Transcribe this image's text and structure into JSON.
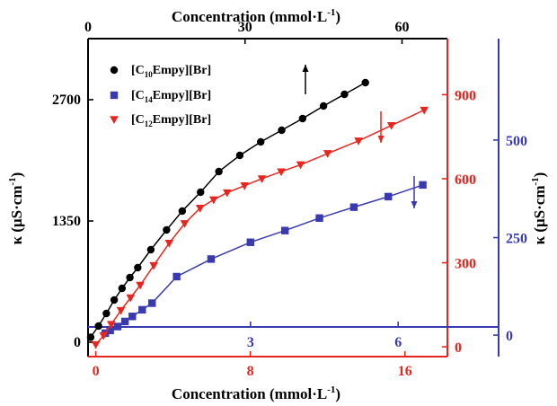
{
  "chart_data": {
    "type": "line",
    "axes": {
      "top_x": {
        "label": "Concentration (mmol·L",
        "label_sup": "-1",
        "label_tail": ")",
        "range": [
          0,
          68.67
        ],
        "ticks": [
          0,
          30,
          60
        ],
        "color": "#000000",
        "applies_to": "[C10Empy][Br]"
      },
      "bottom_x_red": {
        "label": "Concentration (mmol·L",
        "label_sup": "-1",
        "label_tail": ")",
        "range": [
          -0.4,
          18.2
        ],
        "ticks": [
          0,
          8,
          16
        ],
        "color": "#e8261f",
        "applies_to": "[C12Empy][Br]"
      },
      "bottom_x_blue": {
        "range": [
          -0.3,
          7.0
        ],
        "ticks": [
          3,
          6
        ],
        "color": "#3a3ab0",
        "applies_to": "[C14Empy][Br]"
      },
      "left_y": {
        "label": "κ (μS·cm",
        "label_sup": "-1",
        "label_tail": ")",
        "range": [
          -160,
          3380
        ],
        "ticks": [
          0,
          1350,
          2700
        ],
        "color": "#000000",
        "applies_to": "[C10Empy][Br]"
      },
      "right_y_red": {
        "range": [
          -35,
          1100
        ],
        "ticks": [
          0,
          300,
          600,
          900
        ],
        "color": "#e8261f",
        "applies_to": "[C12Empy][Br]"
      },
      "right_y_blue": {
        "label": "κ (μS·cm",
        "label_sup": "-1",
        "label_tail": ")",
        "range": [
          -55,
          760
        ],
        "ticks": [
          0,
          250,
          500
        ],
        "color": "#3a3ab0",
        "applies_to": "[C14Empy][Br]"
      }
    },
    "legend": {
      "placement": "top-left"
    },
    "series": [
      {
        "name": "[C10Empy][Br]",
        "name_base": "[C",
        "name_sub": "10",
        "name_tail": "Empy][Br]",
        "marker": "circle",
        "color": "#000000",
        "arrow": "up",
        "x": [
          0.5,
          2,
          3.5,
          5,
          6.5,
          8,
          9.5,
          12,
          15,
          18,
          21.5,
          25,
          29,
          33,
          37,
          41,
          45,
          49,
          53
        ],
        "y": [
          55,
          180,
          320,
          470,
          600,
          720,
          830,
          1030,
          1250,
          1460,
          1670,
          1900,
          2080,
          2230,
          2360,
          2490,
          2630,
          2760,
          2890
        ]
      },
      {
        "name": "[C14Empy][Br]",
        "name_base": "[C",
        "name_sub": "14",
        "name_tail": "Empy][Br]",
        "marker": "square",
        "color": "#3a3ab0",
        "arrow": "down",
        "x": [
          0.05,
          0.15,
          0.3,
          0.45,
          0.6,
          0.8,
          1.0,
          1.5,
          2.2,
          3.0,
          3.7,
          4.4,
          5.1,
          5.8,
          6.5
        ],
        "y": [
          5,
          12,
          22,
          35,
          48,
          65,
          82,
          150,
          195,
          238,
          268,
          300,
          328,
          355,
          385
        ]
      },
      {
        "name": "[C12Empy][Br]",
        "name_base": "[C",
        "name_sub": "12",
        "name_tail": "Empy][Br]",
        "marker": "triangle-down",
        "color": "#e8261f",
        "arrow": "down",
        "x": [
          0,
          0.4,
          0.8,
          1.3,
          1.8,
          2.3,
          3.0,
          3.8,
          4.6,
          5.4,
          6.1,
          6.8,
          7.7,
          8.6,
          9.6,
          10.6,
          12.0,
          13.6,
          15.3,
          17.0
        ],
        "y": [
          8,
          40,
          80,
          130,
          175,
          220,
          290,
          370,
          440,
          495,
          525,
          550,
          575,
          600,
          625,
          650,
          690,
          735,
          790,
          845
        ]
      }
    ]
  }
}
